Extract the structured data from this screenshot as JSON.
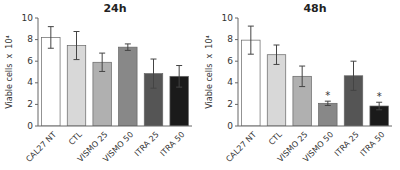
{
  "chart_data": [
    {
      "type": "bar",
      "title": "24h",
      "categories": [
        "CAL27 NT",
        "CTL",
        "VISMO 25",
        "VISMO 50",
        "ITRA 25",
        "ITRA 50"
      ],
      "values": [
        8.2,
        7.45,
        5.9,
        7.3,
        4.85,
        4.6
      ],
      "errors": [
        1.0,
        1.3,
        0.85,
        0.3,
        1.35,
        1.0
      ],
      "colors": [
        "#ffffff",
        "#d8d8d8",
        "#b0b0b0",
        "#888888",
        "#555555",
        "#1a1a1a"
      ],
      "y_label": "Viable cells  x  10⁴",
      "ylim": [
        0,
        10
      ],
      "yticks": [
        0,
        2,
        4,
        6,
        8,
        10
      ],
      "grid": false
    },
    {
      "type": "bar",
      "title": "48h",
      "categories": [
        "CAL27 NT",
        "CTL",
        "VISMO 25",
        "VISMO 50",
        "ITRA 25",
        "ITRA 50"
      ],
      "values": [
        7.95,
        6.6,
        4.6,
        2.1,
        4.65,
        1.85
      ],
      "errors": [
        1.3,
        0.9,
        0.95,
        0.2,
        1.35,
        0.35
      ],
      "colors": [
        "#ffffff",
        "#d8d8d8",
        "#b0b0b0",
        "#888888",
        "#555555",
        "#1a1a1a"
      ],
      "annotations": [
        {
          "category": "VISMO 50",
          "text": "*"
        },
        {
          "category": "ITRA 50",
          "text": "*"
        }
      ],
      "y_label": "Viable cells  x  10⁴",
      "ylim": [
        0,
        10
      ],
      "yticks": [
        0,
        2,
        4,
        6,
        8,
        10
      ],
      "grid": false
    }
  ]
}
